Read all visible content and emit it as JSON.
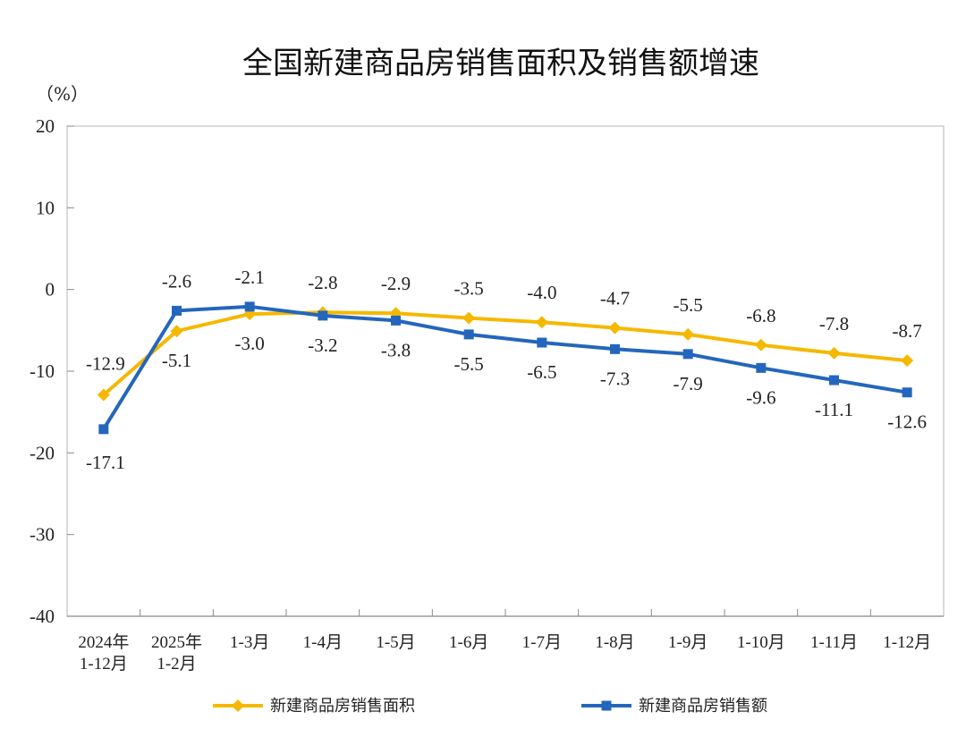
{
  "chart_data": {
    "type": "line",
    "title": "全国新建商品房销售面积及销售额增速",
    "unit_label": "（%）",
    "categories": [
      [
        "2024年",
        "1-12月"
      ],
      [
        "2025年",
        "1-2月"
      ],
      [
        "1-3月"
      ],
      [
        "1-4月"
      ],
      [
        "1-5月"
      ],
      [
        "1-6月"
      ],
      [
        "1-7月"
      ],
      [
        "1-8月"
      ],
      [
        "1-9月"
      ],
      [
        "1-10月"
      ],
      [
        "1-11月"
      ],
      [
        "1-12月"
      ]
    ],
    "ylim": [
      -40,
      20
    ],
    "yticks": [
      20,
      10,
      0,
      -10,
      -20,
      -30,
      -40
    ],
    "legend_position": "bottom",
    "grid": false,
    "series": [
      {
        "name": "新建商品房销售面积",
        "color": "#F5B800",
        "marker": "diamond",
        "values": [
          -12.9,
          -5.1,
          -3.0,
          -2.8,
          -2.9,
          -3.5,
          -4.0,
          -4.7,
          -5.5,
          -6.8,
          -7.8,
          -8.7
        ],
        "labels": [
          "-12.9",
          "-5.1",
          "-3.0",
          "-2.8",
          "-2.9",
          "-3.5",
          "-4.0",
          "-4.7",
          "-5.5",
          "-6.8",
          "-7.8",
          "-8.7"
        ]
      },
      {
        "name": "新建商品房销售额",
        "color": "#2466BC",
        "marker": "square",
        "values": [
          -17.1,
          -2.6,
          -2.1,
          -3.2,
          -3.8,
          -5.5,
          -6.5,
          -7.3,
          -7.9,
          -9.6,
          -11.1,
          -12.6
        ],
        "labels": [
          "-17.1",
          "-2.6",
          "-2.1",
          "-3.2",
          "-3.8",
          "-5.5",
          "-6.5",
          "-7.3",
          "-7.9",
          "-9.6",
          "-11.1",
          "-12.6"
        ]
      }
    ]
  }
}
